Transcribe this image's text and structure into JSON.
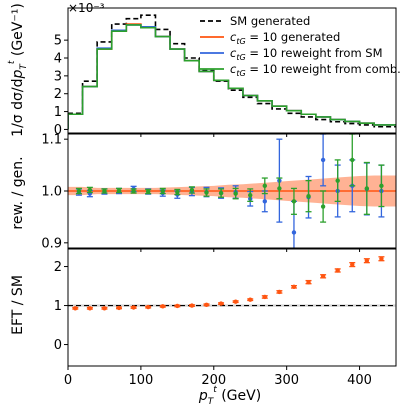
{
  "chart_data": [
    {
      "type": "line",
      "ylabel": "1/σ dσ/dp_T^t (GeV⁻¹)",
      "scale_label": "×10⁻³",
      "x_edges": [
        0,
        20,
        40,
        60,
        80,
        100,
        120,
        140,
        160,
        180,
        200,
        220,
        240,
        260,
        280,
        300,
        320,
        340,
        360,
        380,
        400,
        420,
        450
      ],
      "ylim": [
        -0.2,
        6.8
      ],
      "yticks": [
        0,
        1,
        2,
        3,
        4,
        5
      ],
      "legend_position": "top-right",
      "series": [
        {
          "name": "SM generated",
          "color": "#000000",
          "dash": "5,3",
          "values": [
            0.9,
            2.7,
            4.9,
            5.9,
            6.2,
            6.4,
            5.6,
            4.8,
            4.0,
            3.3,
            2.7,
            2.2,
            1.8,
            1.45,
            1.15,
            0.9,
            0.7,
            0.55,
            0.43,
            0.33,
            0.25,
            0.15
          ]
        },
        {
          "name": "c_tG = 10 generated",
          "color": "#ff5511",
          "dash": "",
          "values": [
            0.85,
            2.4,
            4.5,
            5.5,
            5.9,
            5.7,
            5.2,
            4.5,
            3.85,
            3.25,
            2.75,
            2.3,
            1.9,
            1.6,
            1.3,
            1.05,
            0.85,
            0.7,
            0.55,
            0.45,
            0.35,
            0.25
          ]
        },
        {
          "name": "c_tG = 10 reweight from SM",
          "color": "#3366dd",
          "dash": "",
          "values": [
            0.85,
            2.4,
            4.55,
            5.55,
            5.85,
            5.75,
            5.2,
            4.5,
            3.85,
            3.25,
            2.75,
            2.3,
            1.9,
            1.6,
            1.3,
            1.05,
            0.85,
            0.7,
            0.55,
            0.45,
            0.35,
            0.25
          ]
        },
        {
          "name": "c_tG = 10 reweight from comb.",
          "color": "#2ca02c",
          "dash": "",
          "values": [
            0.85,
            2.4,
            4.5,
            5.5,
            5.85,
            5.7,
            5.2,
            4.5,
            3.85,
            3.25,
            2.75,
            2.3,
            1.9,
            1.6,
            1.3,
            1.05,
            0.85,
            0.7,
            0.55,
            0.45,
            0.35,
            0.25
          ]
        }
      ]
    },
    {
      "type": "scatter",
      "ylabel": "rew. / gen.",
      "ylim": [
        0.89,
        1.11
      ],
      "yticks": [
        0.9,
        1.0,
        1.1
      ],
      "reference_line": 1.0,
      "band": {
        "color": "#ff5511",
        "x": [
          0,
          20,
          40,
          60,
          80,
          100,
          120,
          140,
          160,
          180,
          200,
          220,
          240,
          260,
          280,
          300,
          320,
          340,
          360,
          380,
          400,
          420,
          450
        ],
        "half_width": [
          0.008,
          0.008,
          0.006,
          0.006,
          0.006,
          0.006,
          0.006,
          0.007,
          0.008,
          0.009,
          0.01,
          0.012,
          0.013,
          0.015,
          0.017,
          0.019,
          0.021,
          0.023,
          0.025,
          0.027,
          0.029,
          0.03,
          0.03
        ]
      },
      "series": [
        {
          "name": "reweight from SM",
          "color": "#3366dd",
          "x": [
            15,
            30,
            50,
            70,
            90,
            110,
            130,
            150,
            170,
            190,
            210,
            230,
            250,
            270,
            290,
            310,
            330,
            350,
            370,
            390,
            410,
            430
          ],
          "y": [
            0.998,
            0.995,
            0.999,
            1.0,
            1.004,
            0.999,
            0.996,
            0.993,
            0.999,
            0.998,
            0.996,
            0.998,
            0.985,
            0.98,
            1.02,
            0.92,
            0.988,
            1.06,
            1.0,
            1.01,
            1.004,
            1.0
          ],
          "err": [
            0.006,
            0.006,
            0.005,
            0.005,
            0.005,
            0.005,
            0.006,
            0.007,
            0.008,
            0.009,
            0.01,
            0.012,
            0.014,
            0.02,
            0.08,
            0.06,
            0.04,
            0.05,
            0.05,
            0.05,
            0.05,
            0.05
          ]
        },
        {
          "name": "reweight from comb.",
          "color": "#2ca02c",
          "x": [
            15,
            30,
            50,
            70,
            90,
            110,
            130,
            150,
            170,
            190,
            210,
            230,
            250,
            270,
            290,
            310,
            330,
            350,
            370,
            390,
            410,
            430
          ],
          "y": [
            1.0,
            1.002,
            1.0,
            1.001,
            1.0,
            0.999,
            1.0,
            0.998,
            1.002,
            0.997,
            0.996,
            0.995,
            0.992,
            1.01,
            1.005,
            0.98,
            0.99,
            0.97,
            1.02,
            1.06,
            1.005,
            1.01
          ],
          "err": [
            0.005,
            0.005,
            0.004,
            0.004,
            0.004,
            0.004,
            0.005,
            0.005,
            0.006,
            0.007,
            0.008,
            0.01,
            0.012,
            0.015,
            0.02,
            0.025,
            0.03,
            0.03,
            0.04,
            0.05,
            0.05,
            0.04
          ]
        }
      ]
    },
    {
      "type": "scatter",
      "ylabel": "EFT / SM",
      "xlabel": "p_T^t (GeV)",
      "ylim": [
        -0.55,
        2.45
      ],
      "yticks": [
        0,
        1,
        2
      ],
      "xlim": [
        0,
        450
      ],
      "xticks": [
        0,
        100,
        200,
        300,
        400
      ],
      "reference_line": 1.0,
      "series": [
        {
          "name": "EFT / SM",
          "color": "#ff5511",
          "x": [
            10,
            30,
            50,
            70,
            90,
            110,
            130,
            150,
            170,
            190,
            210,
            230,
            250,
            270,
            290,
            310,
            330,
            350,
            370,
            390,
            410,
            430
          ],
          "y": [
            0.93,
            0.93,
            0.93,
            0.94,
            0.95,
            0.96,
            0.98,
            0.99,
            1.0,
            1.02,
            1.05,
            1.1,
            1.15,
            1.22,
            1.35,
            1.48,
            1.6,
            1.75,
            1.9,
            2.05,
            2.15,
            2.2
          ],
          "err": [
            0.02,
            0.02,
            0.02,
            0.02,
            0.02,
            0.02,
            0.02,
            0.02,
            0.02,
            0.02,
            0.02,
            0.02,
            0.02,
            0.03,
            0.03,
            0.03,
            0.04,
            0.04,
            0.04,
            0.05,
            0.05,
            0.05
          ]
        }
      ]
    }
  ]
}
